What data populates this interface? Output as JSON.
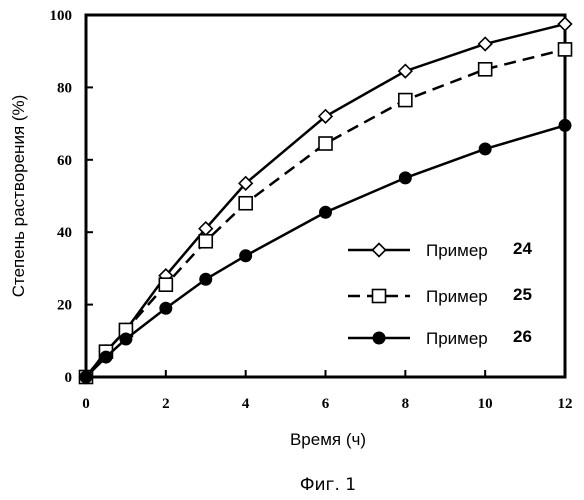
{
  "chart_data": {
    "type": "line",
    "xlabel": "Время (ч)",
    "ylabel": "Степень растворения (%)",
    "caption": "Фиг. 1",
    "xlim": [
      0,
      12
    ],
    "ylim": [
      0,
      100
    ],
    "xticks": [
      "0",
      "2",
      "4",
      "6",
      "8",
      "10",
      "12"
    ],
    "yticks": [
      "0",
      "20",
      "40",
      "60",
      "80",
      "100"
    ],
    "legend_position": "lower-right",
    "series": [
      {
        "name": "Пример 24",
        "legend_label": "Пример",
        "legend_number": "24",
        "marker": "diamond-open",
        "line": "solid",
        "color": "#000000",
        "x": [
          0,
          0.5,
          1,
          2,
          3,
          4,
          6,
          8,
          10,
          12
        ],
        "y": [
          0,
          7,
          13,
          28,
          41,
          53.5,
          72,
          84.5,
          92,
          97.5
        ]
      },
      {
        "name": "Пример 25",
        "legend_label": "Пример",
        "legend_number": "25",
        "marker": "square-open",
        "line": "dashed",
        "color": "#000000",
        "x": [
          0,
          0.5,
          1,
          2,
          3,
          4,
          6,
          8,
          10,
          12
        ],
        "y": [
          0,
          7,
          13,
          25.5,
          37.5,
          48,
          64.5,
          76.5,
          85,
          90.5
        ]
      },
      {
        "name": "Пример 26",
        "legend_label": "Пример",
        "legend_number": "26",
        "marker": "circle-filled",
        "line": "solid",
        "color": "#000000",
        "x": [
          0,
          0.5,
          1,
          2,
          3,
          4,
          6,
          8,
          10,
          12
        ],
        "y": [
          0,
          5.5,
          10.5,
          19,
          27,
          33.5,
          45.5,
          55,
          63,
          69.5
        ]
      }
    ]
  }
}
